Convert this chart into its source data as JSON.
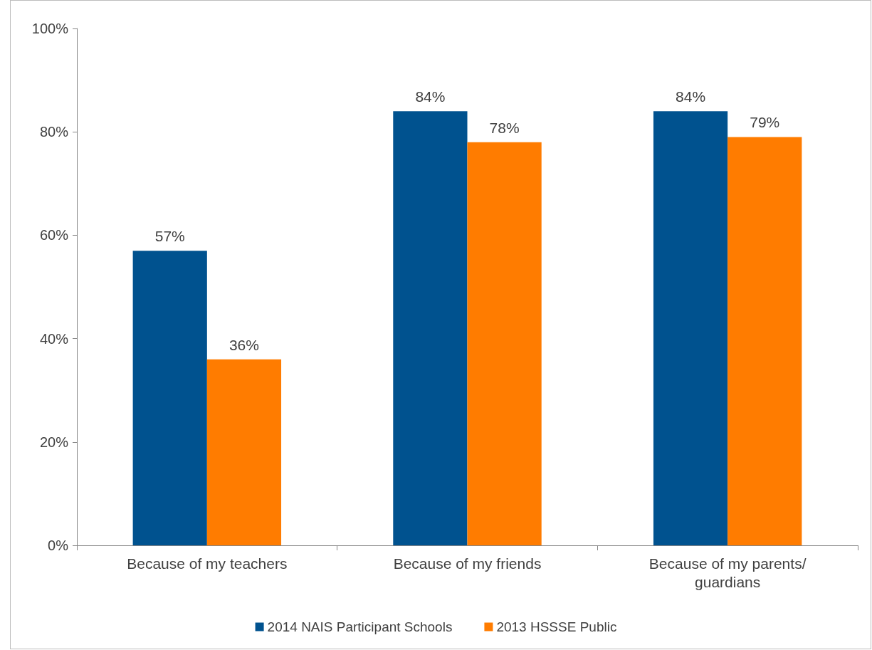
{
  "chart_data": {
    "type": "bar",
    "categories": [
      "Because of my teachers",
      "Because of my friends",
      "Because of my parents/guardians"
    ],
    "series": [
      {
        "name": "2014 NAIS Participant Schools",
        "color": "#00528f",
        "values": [
          57,
          84,
          84
        ],
        "value_labels": [
          "57%",
          "84%",
          "84%"
        ]
      },
      {
        "name": "2013 HSSSE Public",
        "color": "#ff7c00",
        "values": [
          36,
          78,
          79
        ],
        "value_labels": [
          "36%",
          "78%",
          "79%"
        ]
      }
    ],
    "ylim": [
      0,
      100
    ],
    "yticks": [
      {
        "value": 0,
        "label": "0%"
      },
      {
        "value": 20,
        "label": "20%"
      },
      {
        "value": 40,
        "label": "40%"
      },
      {
        "value": 60,
        "label": "60%"
      },
      {
        "value": 80,
        "label": "80%"
      },
      {
        "value": 100,
        "label": "100%"
      }
    ],
    "grid": false,
    "legend": "bottom"
  }
}
